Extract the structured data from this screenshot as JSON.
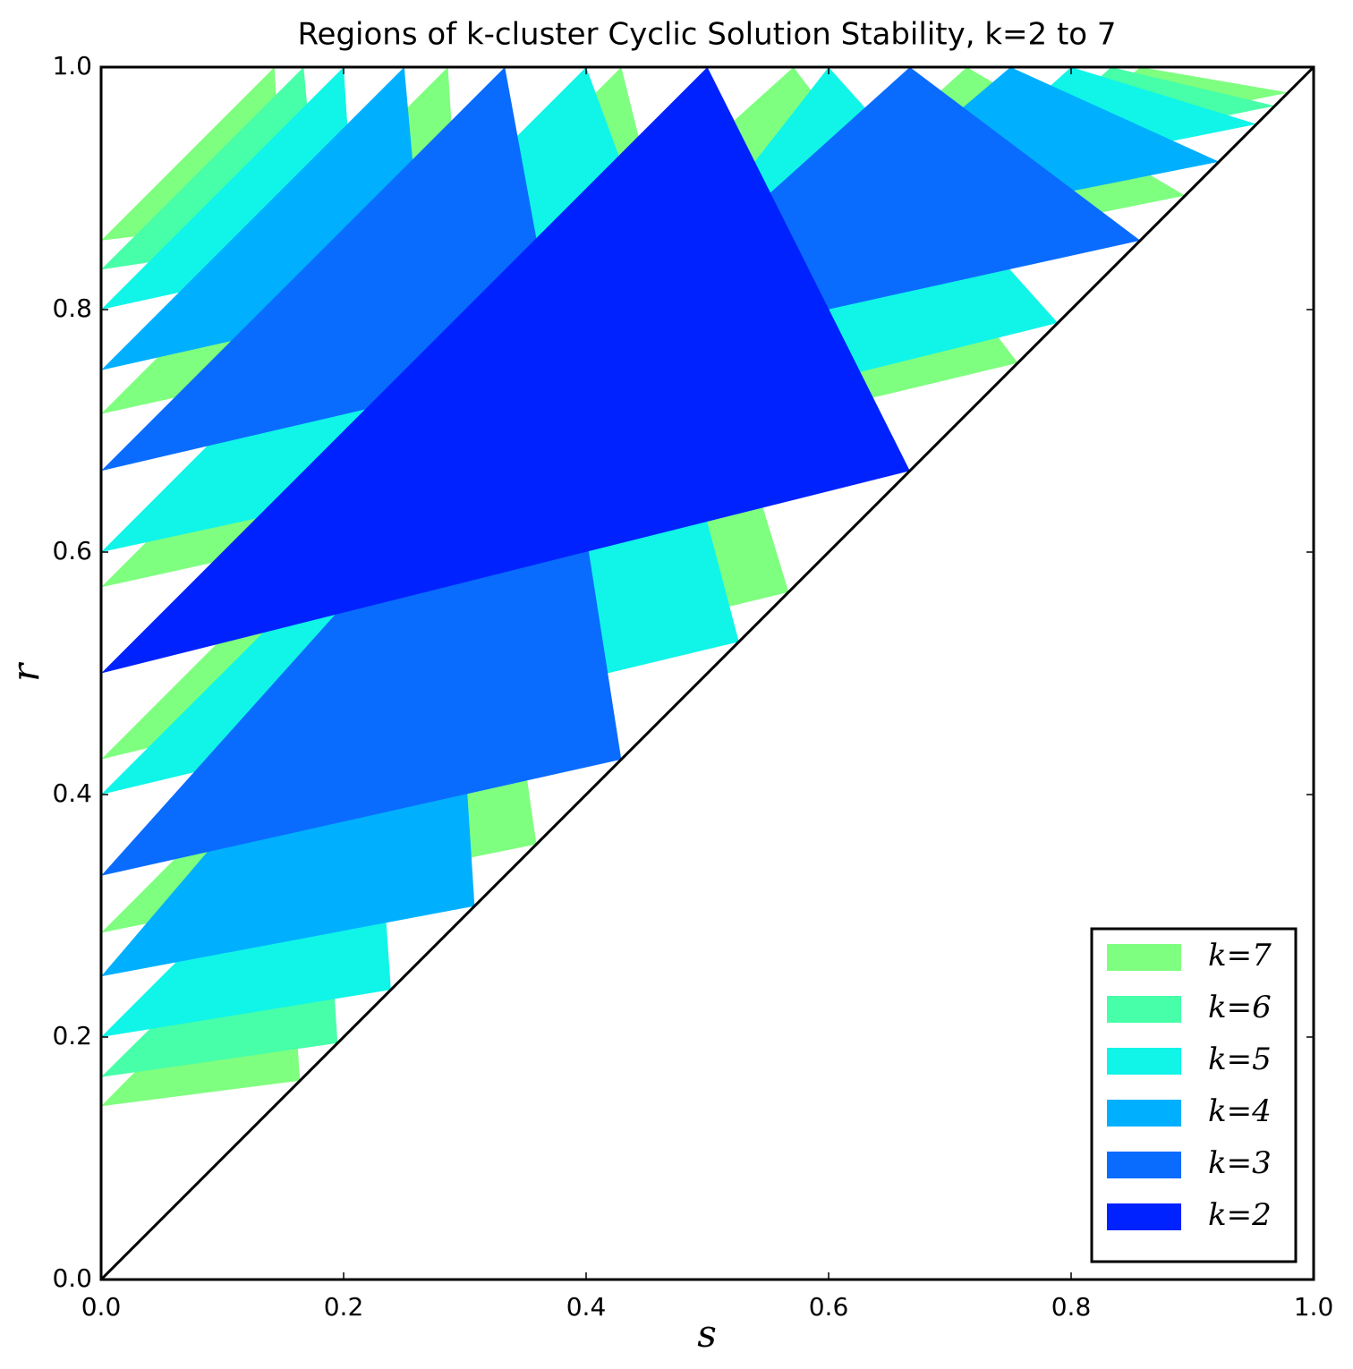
{
  "chart_data": {
    "type": "polygon",
    "title": "Regions of k-cluster Cyclic Solution Stability, k=2 to 7",
    "x_label": "s",
    "y_label": "r",
    "xlim": [
      0,
      1
    ],
    "ylim": [
      0,
      1
    ],
    "xticks": [
      {
        "value": 0,
        "label": "0.0"
      },
      {
        "value": 0.2,
        "label": "0.2"
      },
      {
        "value": 0.4,
        "label": "0.4"
      },
      {
        "value": 0.6,
        "label": "0.6"
      },
      {
        "value": 0.8,
        "label": "0.8"
      },
      {
        "value": 1,
        "label": "1.0"
      }
    ],
    "yticks": [
      {
        "value": 0,
        "label": "0.0"
      },
      {
        "value": 0.2,
        "label": "0.2"
      },
      {
        "value": 0.4,
        "label": "0.4"
      },
      {
        "value": 0.6,
        "label": "0.6"
      },
      {
        "value": 0.8,
        "label": "0.8"
      },
      {
        "value": 1,
        "label": "1.0"
      }
    ],
    "legend": "lower right",
    "series": [
      {
        "name": "k=7",
        "color": "#7fff7f",
        "polygons": [
          {
            "s": [
              0,
              0.143,
              0.15
            ],
            "r": [
              0.857,
              1,
              0.875
            ]
          },
          {
            "s": [
              0,
              0.286,
              0.3
            ],
            "r": [
              0.714,
              1,
              0.78
            ]
          },
          {
            "s": [
              0,
              0.429,
              0.508
            ],
            "r": [
              0.571,
              1,
              0.683
            ]
          },
          {
            "s": [
              0,
              0.567,
              0.467
            ],
            "r": [
              0.429,
              0.567,
              0.896
            ]
          },
          {
            "s": [
              0,
              0.359,
              0.323
            ],
            "r": [
              0.286,
              0.359,
              0.61
            ]
          },
          {
            "s": [
              0,
              0.164,
              0.155
            ],
            "r": [
              0.143,
              0.164,
              0.3
            ]
          },
          {
            "s": [
              0.571,
              0.756,
              0.135
            ],
            "r": [
              1,
              0.756,
              0.607
            ]
          },
          {
            "s": [
              0.714,
              0.894,
              0.511
            ],
            "r": [
              1,
              0.894,
              0.817
            ]
          },
          {
            "s": [
              0.857,
              0.979,
              0.79
            ],
            "r": [
              1,
              0.979,
              0.94
            ]
          }
        ]
      },
      {
        "name": "k=6",
        "color": "#46ffa8",
        "polygons": [
          {
            "s": [
              0,
              0.167,
              0.18
            ],
            "r": [
              0.833,
              1,
              0.86
            ]
          },
          {
            "s": [
              0,
              0.195,
              0.185
            ],
            "r": [
              0.167,
              0.195,
              0.35
            ]
          },
          {
            "s": [
              0.833,
              0.968,
              0.749
            ],
            "r": [
              1,
              0.968,
              0.924
            ]
          }
        ]
      },
      {
        "name": "k=5",
        "color": "#10f5e8",
        "polygons": [
          {
            "s": [
              0,
              0.2,
              0.21
            ],
            "r": [
              0.8,
              1,
              0.846
            ]
          },
          {
            "s": [
              0,
              0.4,
              0.507
            ],
            "r": [
              0.6,
              1,
              0.71
            ]
          },
          {
            "s": [
              0,
              0.526,
              0.4425
            ],
            "r": [
              0.4,
              0.526,
              0.8425
            ]
          },
          {
            "s": [
              0,
              0.239,
              0.226
            ],
            "r": [
              0.2,
              0.239,
              0.426
            ]
          },
          {
            "s": [
              0.6,
              0.789,
              0.35
            ],
            "r": [
              1,
              0.789,
              0.68
            ]
          },
          {
            "s": [
              0.8,
              0.953,
              0.689
            ],
            "r": [
              1,
              0.953,
              0.9
            ]
          }
        ]
      },
      {
        "name": "k=4",
        "color": "#00b0ff",
        "polygons": [
          {
            "s": [
              0,
              0.25,
              0.267
            ],
            "r": [
              0.75,
              1,
              0.81
            ]
          },
          {
            "s": [
              0,
              0.308,
              0.29
            ],
            "r": [
              0.25,
              0.308,
              0.59
            ]
          },
          {
            "s": [
              0.75,
              0.922,
              0.577
            ],
            "r": [
              1,
              0.922,
              0.853
            ]
          }
        ]
      },
      {
        "name": "k=3",
        "color": "#0a6cff",
        "polygons": [
          {
            "s": [
              0,
              0.333,
              0.378
            ],
            "r": [
              0.667,
              1,
              0.755
            ]
          },
          {
            "s": [
              0,
              0.429,
              0.378
            ],
            "r": [
              0.333,
              0.429,
              0.755
            ]
          },
          {
            "s": [
              0.667,
              0.857,
              0.395
            ],
            "r": [
              1,
              0.857,
              0.755
            ]
          }
        ]
      },
      {
        "name": "k=2",
        "color": "#0022ff",
        "polygons": [
          {
            "s": [
              0,
              0.5,
              0.667
            ],
            "r": [
              0.5,
              1,
              0.667
            ]
          }
        ]
      }
    ]
  }
}
